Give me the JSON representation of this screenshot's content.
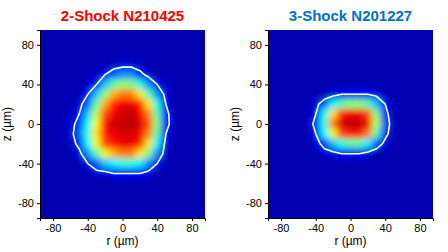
{
  "chart_data": [
    {
      "type": "heatmap",
      "title": "2-Shock N210425",
      "color": "#ff0000",
      "x_label": "r (µm)",
      "y_label": "z (µm)",
      "xlim": [
        -95,
        95
      ],
      "ylim": [
        -95,
        95
      ],
      "xticks": [
        -80,
        -40,
        0,
        40,
        80
      ],
      "yticks": [
        -80,
        -40,
        0,
        40,
        80
      ],
      "x": [
        -70,
        -60,
        -50,
        -40,
        -30,
        -20,
        -10,
        0,
        10,
        20,
        30,
        40,
        50,
        60,
        70
      ],
      "y": [
        70,
        60,
        50,
        40,
        30,
        20,
        10,
        0,
        -10,
        -20,
        -30,
        -40,
        -50,
        -60,
        -70
      ],
      "zlim": [
        0,
        1
      ],
      "contour_level": 0.1,
      "cells": [
        [
          0,
          0,
          0,
          0,
          0,
          0,
          0,
          0,
          0,
          0,
          0,
          0,
          0,
          0,
          0
        ],
        [
          0,
          0,
          0,
          0,
          0,
          0,
          0.02,
          0.05,
          0.05,
          0.02,
          0,
          0,
          0,
          0,
          0
        ],
        [
          0,
          0,
          0,
          0,
          0.02,
          0.1,
          0.2,
          0.25,
          0.25,
          0.15,
          0.05,
          0,
          0,
          0,
          0
        ],
        [
          0,
          0,
          0,
          0.02,
          0.1,
          0.3,
          0.45,
          0.5,
          0.5,
          0.4,
          0.25,
          0.1,
          0.02,
          0,
          0
        ],
        [
          0,
          0,
          0,
          0.1,
          0.3,
          0.5,
          0.7,
          0.75,
          0.75,
          0.65,
          0.45,
          0.25,
          0.05,
          0,
          0
        ],
        [
          0,
          0,
          0.05,
          0.2,
          0.45,
          0.7,
          0.85,
          0.9,
          0.9,
          0.85,
          0.65,
          0.4,
          0.1,
          0,
          0
        ],
        [
          0,
          0.02,
          0.1,
          0.3,
          0.55,
          0.8,
          0.9,
          0.95,
          1,
          0.9,
          0.75,
          0.45,
          0.15,
          0,
          0
        ],
        [
          0,
          0.05,
          0.15,
          0.35,
          0.6,
          0.85,
          0.95,
          1,
          1,
          0.95,
          0.8,
          0.5,
          0.15,
          0.02,
          0
        ],
        [
          0,
          0.05,
          0.2,
          0.4,
          0.65,
          0.85,
          0.9,
          0.95,
          0.95,
          0.9,
          0.75,
          0.45,
          0.1,
          0,
          0
        ],
        [
          0,
          0.02,
          0.15,
          0.35,
          0.6,
          0.8,
          0.85,
          0.9,
          0.9,
          0.85,
          0.65,
          0.35,
          0.05,
          0,
          0
        ],
        [
          0,
          0,
          0.05,
          0.25,
          0.45,
          0.6,
          0.7,
          0.75,
          0.75,
          0.65,
          0.5,
          0.25,
          0.02,
          0,
          0
        ],
        [
          0,
          0,
          0,
          0.1,
          0.2,
          0.3,
          0.35,
          0.4,
          0.4,
          0.35,
          0.25,
          0.1,
          0,
          0,
          0
        ],
        [
          0,
          0,
          0,
          0,
          0.05,
          0.05,
          0.1,
          0.1,
          0.1,
          0.1,
          0.05,
          0,
          0,
          0,
          0
        ],
        [
          0,
          0,
          0,
          0,
          0,
          0,
          0,
          0,
          0,
          0,
          0,
          0,
          0,
          0,
          0
        ],
        [
          0,
          0,
          0,
          0,
          0,
          0,
          0,
          0,
          0,
          0,
          0,
          0,
          0,
          0,
          0
        ]
      ]
    },
    {
      "type": "heatmap",
      "title": "3-Shock N201227",
      "color": "#0070c0",
      "x_label": "r (µm)",
      "y_label": "z (µm)",
      "xlim": [
        -95,
        95
      ],
      "ylim": [
        -95,
        95
      ],
      "xticks": [
        -80,
        -40,
        0,
        40,
        80
      ],
      "yticks": [
        -80,
        -40,
        0,
        40,
        80
      ],
      "x": [
        -70,
        -60,
        -50,
        -40,
        -30,
        -20,
        -10,
        0,
        10,
        20,
        30,
        40,
        50,
        60,
        70
      ],
      "y": [
        70,
        60,
        50,
        40,
        30,
        20,
        10,
        0,
        -10,
        -20,
        -30,
        -40,
        -50,
        -60,
        -70
      ],
      "zlim": [
        0,
        1
      ],
      "contour_level": 0.1,
      "cells": [
        [
          0,
          0,
          0,
          0,
          0,
          0,
          0,
          0,
          0,
          0,
          0,
          0,
          0,
          0,
          0
        ],
        [
          0,
          0,
          0,
          0,
          0,
          0,
          0,
          0,
          0,
          0,
          0,
          0,
          0,
          0,
          0
        ],
        [
          0,
          0,
          0,
          0,
          0,
          0,
          0,
          0,
          0,
          0,
          0,
          0,
          0,
          0,
          0
        ],
        [
          0,
          0,
          0,
          0,
          0,
          0,
          0,
          0,
          0,
          0,
          0,
          0,
          0,
          0,
          0
        ],
        [
          0,
          0,
          0,
          0,
          0,
          0.05,
          0.1,
          0.1,
          0.1,
          0.1,
          0.05,
          0,
          0,
          0,
          0
        ],
        [
          0,
          0,
          0,
          0.05,
          0.2,
          0.35,
          0.45,
          0.5,
          0.5,
          0.45,
          0.3,
          0.1,
          0,
          0,
          0
        ],
        [
          0,
          0,
          0,
          0.1,
          0.35,
          0.65,
          0.85,
          0.9,
          0.9,
          0.8,
          0.5,
          0.15,
          0,
          0,
          0
        ],
        [
          0,
          0,
          0,
          0.15,
          0.4,
          0.75,
          0.95,
          1,
          1,
          0.9,
          0.55,
          0.2,
          0,
          0,
          0
        ],
        [
          0,
          0,
          0,
          0.1,
          0.35,
          0.6,
          0.8,
          0.85,
          0.85,
          0.75,
          0.45,
          0.15,
          0,
          0,
          0
        ],
        [
          0,
          0,
          0,
          0.05,
          0.15,
          0.3,
          0.4,
          0.45,
          0.45,
          0.35,
          0.2,
          0.05,
          0,
          0,
          0
        ],
        [
          0,
          0,
          0,
          0,
          0.05,
          0.05,
          0.1,
          0.1,
          0.1,
          0.05,
          0,
          0,
          0,
          0,
          0
        ],
        [
          0,
          0,
          0,
          0,
          0,
          0,
          0,
          0,
          0,
          0,
          0,
          0,
          0,
          0,
          0
        ],
        [
          0,
          0,
          0,
          0,
          0,
          0,
          0,
          0,
          0,
          0,
          0,
          0,
          0,
          0,
          0
        ],
        [
          0,
          0,
          0,
          0,
          0,
          0,
          0,
          0,
          0,
          0,
          0,
          0,
          0,
          0,
          0
        ],
        [
          0,
          0,
          0,
          0,
          0,
          0,
          0,
          0,
          0,
          0,
          0,
          0,
          0,
          0,
          0
        ]
      ]
    }
  ]
}
